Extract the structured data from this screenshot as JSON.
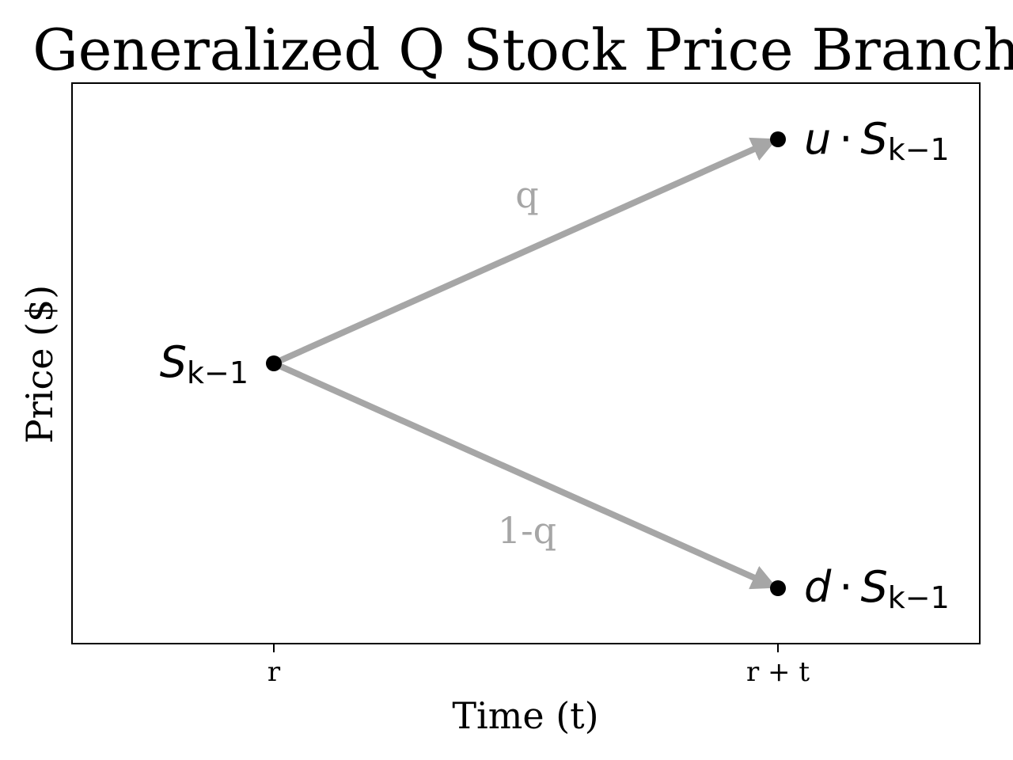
{
  "title": "Generalized Q Stock Price Branch",
  "axes": {
    "xlabel": "Time (t)",
    "ylabel": "Price ($)",
    "x_ticks": [
      "r",
      "r + t"
    ]
  },
  "nodes": {
    "start": {
      "base": "S",
      "subscript": "k−1"
    },
    "up": {
      "prefix": "u",
      "dot": "·",
      "base": "S",
      "subscript": "k−1"
    },
    "down": {
      "prefix": "d",
      "dot": "·",
      "base": "S",
      "subscript": "k−1"
    }
  },
  "branches": {
    "up_label": "q",
    "down_label": "1-q"
  },
  "colors": {
    "branch": "#a6a6a6",
    "node": "#000000",
    "frame": "#000000"
  }
}
